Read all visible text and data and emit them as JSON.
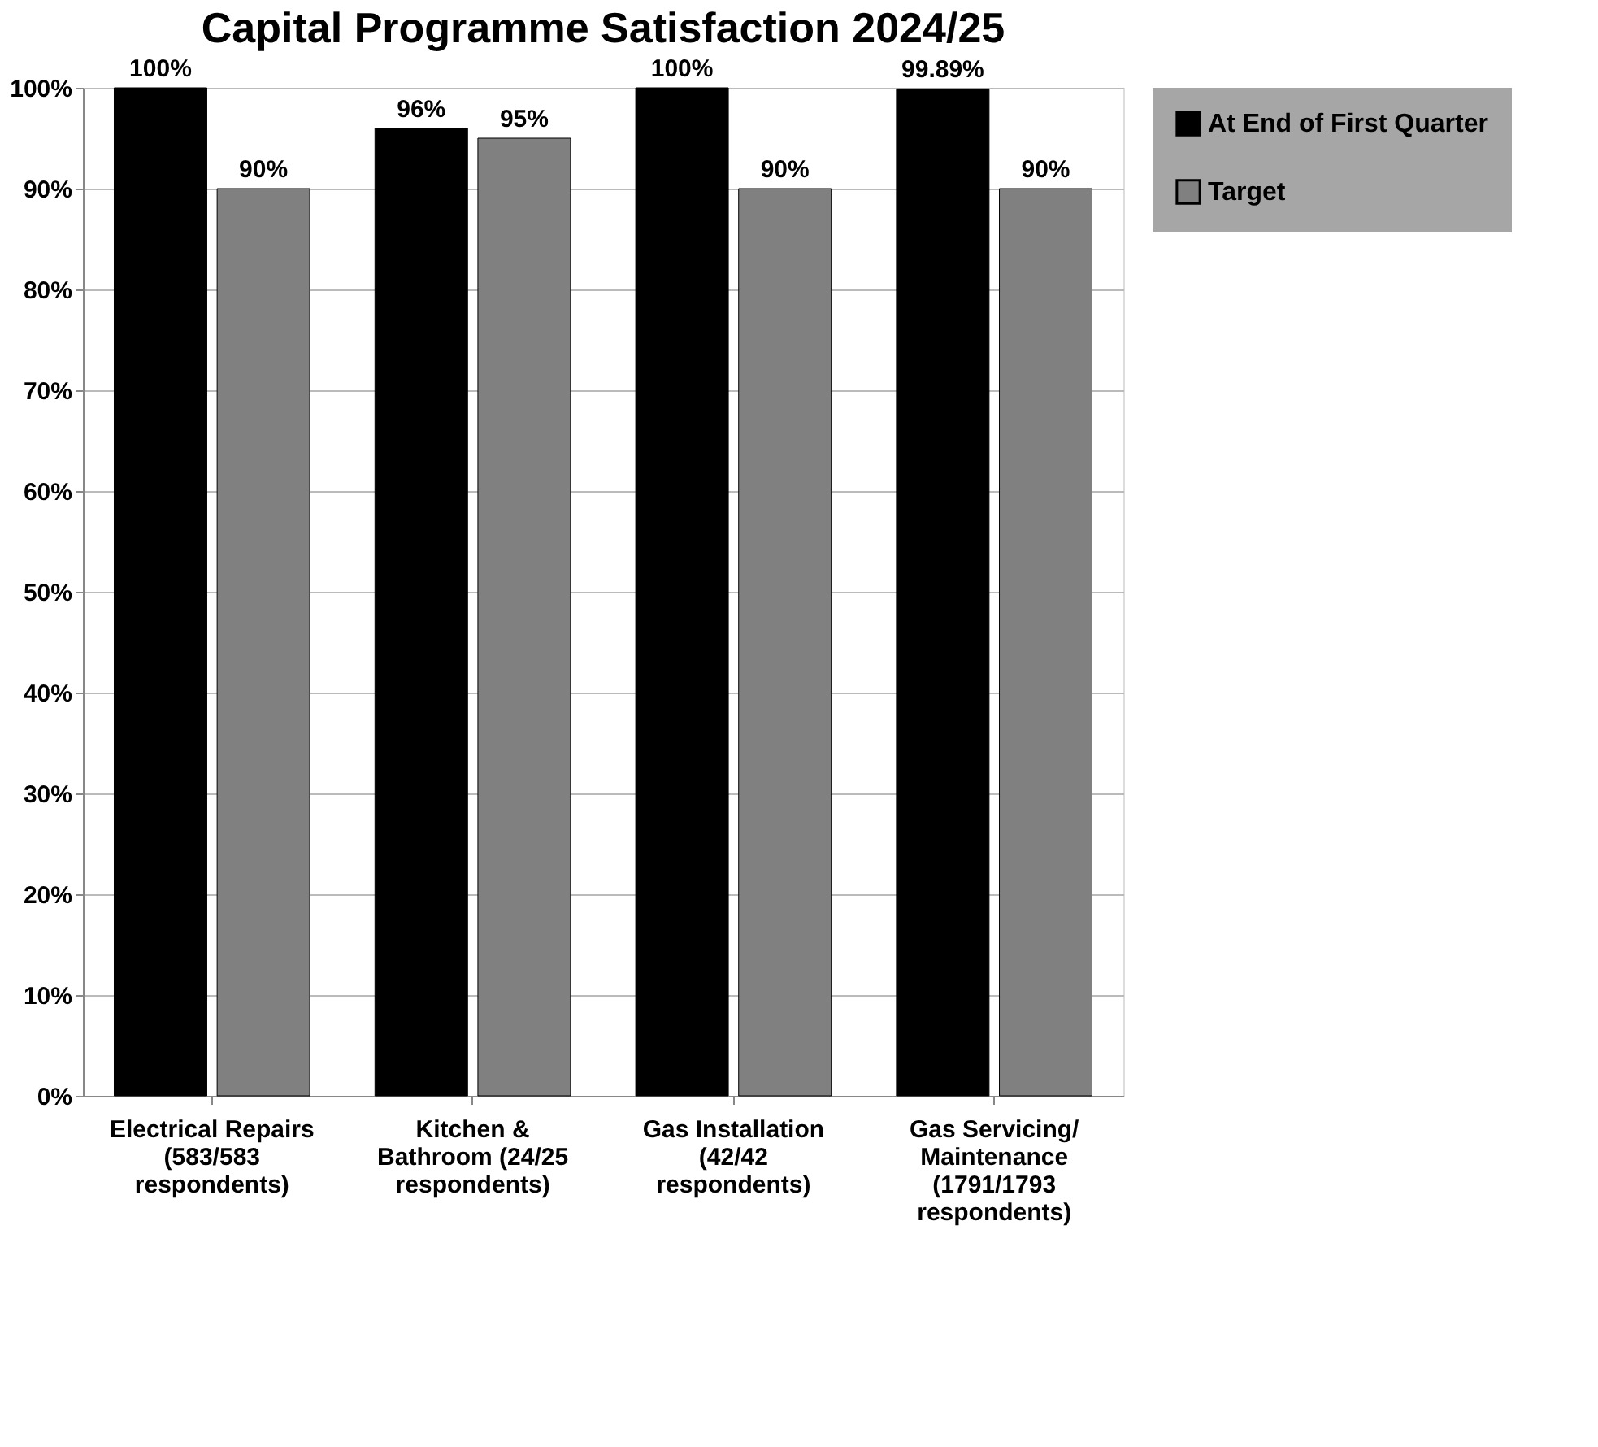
{
  "chart_data": {
    "type": "bar",
    "title": "Capital Programme Satisfaction 2024/25",
    "categories": [
      "Electrical Repairs\n(583/583\nrespondents)",
      "Kitchen &\nBathroom (24/25\nrespondents)",
      "Gas Installation\n(42/42\nrespondents)",
      "Gas Servicing/\nMaintenance\n(1791/1793\nrespondents)"
    ],
    "series": [
      {
        "name": "At End of First Quarter",
        "color": "#000000",
        "values": [
          100,
          96,
          100,
          99.89
        ],
        "value_labels": [
          "100%",
          "96%",
          "100%",
          "99.89%"
        ]
      },
      {
        "name": "Target",
        "color": "#808080",
        "values": [
          90,
          95,
          90,
          90
        ],
        "value_labels": [
          "90%",
          "95%",
          "90%",
          "90%"
        ]
      }
    ],
    "ylim": [
      0,
      100
    ],
    "yticks": [
      {
        "value": 0,
        "label": "0%"
      },
      {
        "value": 10,
        "label": "10%"
      },
      {
        "value": 20,
        "label": "20%"
      },
      {
        "value": 30,
        "label": "30%"
      },
      {
        "value": 40,
        "label": "40%"
      },
      {
        "value": 50,
        "label": "50%"
      },
      {
        "value": 60,
        "label": "60%"
      },
      {
        "value": 70,
        "label": "70%"
      },
      {
        "value": 80,
        "label": "80%"
      },
      {
        "value": 90,
        "label": "90%"
      },
      {
        "value": 100,
        "label": "100%"
      }
    ],
    "grid": "y",
    "legend": "right"
  }
}
